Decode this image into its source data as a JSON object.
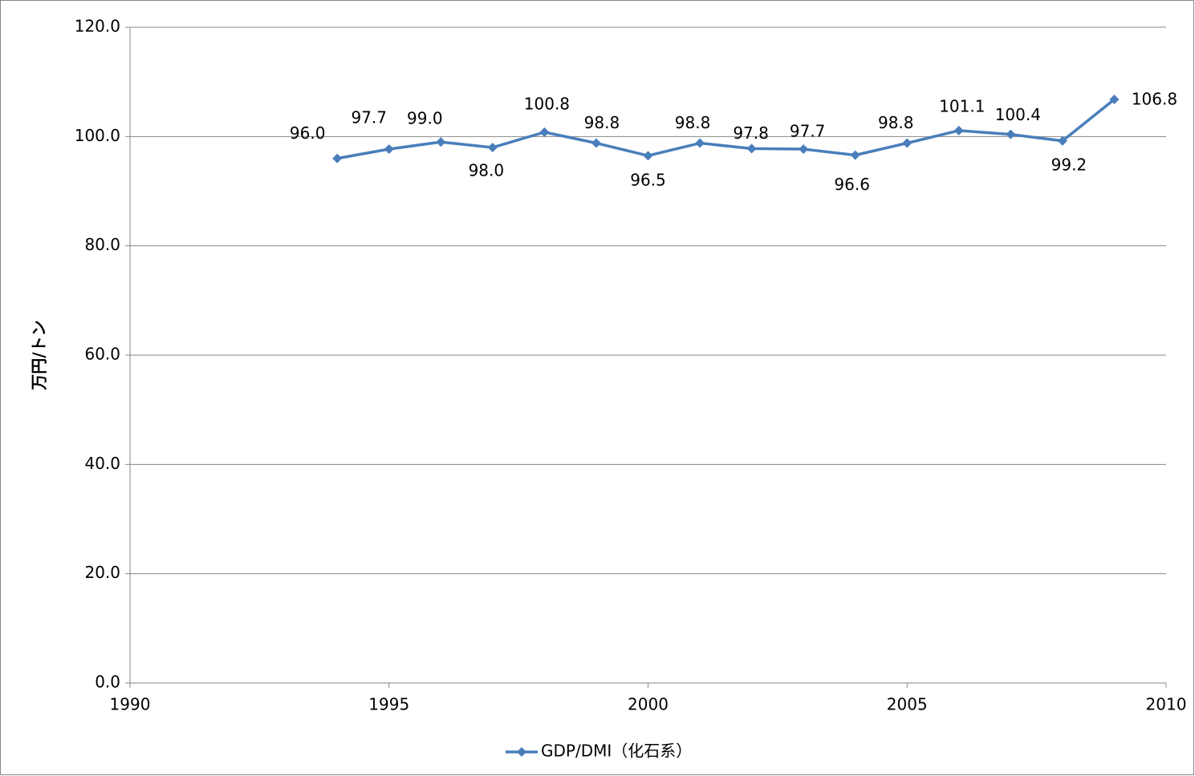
{
  "chart_data": {
    "type": "line",
    "y_label": "万円/トン",
    "x": [
      1994,
      1995,
      1996,
      1997,
      1998,
      1999,
      2000,
      2001,
      2002,
      2003,
      2004,
      2005,
      2006,
      2007,
      2008,
      2009
    ],
    "series": [
      {
        "name": "GDP/DMI（化石系）",
        "color": "#4a7ebb",
        "values": [
          96.0,
          97.7,
          99.0,
          98.0,
          100.8,
          98.8,
          96.5,
          98.8,
          97.8,
          97.7,
          96.6,
          98.8,
          101.1,
          100.4,
          99.2,
          106.8
        ],
        "value_labels": [
          "96.0",
          "97.7",
          "99.0",
          "98.0",
          "100.8",
          "98.8",
          "96.5",
          "98.8",
          "97.8",
          "97.7",
          "96.6",
          "98.8",
          "101.1",
          "100.4",
          "99.2",
          "106.8"
        ]
      }
    ],
    "xlim": [
      1990,
      2010
    ],
    "xticks": [
      1990,
      1995,
      2000,
      2005,
      2010
    ],
    "ylim": [
      0,
      120
    ],
    "yticks": [
      {
        "value": 0,
        "label": "0.0"
      },
      {
        "value": 20,
        "label": "20.0"
      },
      {
        "value": 40,
        "label": "40.0"
      },
      {
        "value": 60,
        "label": "60.0"
      },
      {
        "value": 80,
        "label": "80.0"
      },
      {
        "value": 100,
        "label": "100.0"
      },
      {
        "value": 120,
        "label": "120.0"
      }
    ],
    "grid": true
  }
}
